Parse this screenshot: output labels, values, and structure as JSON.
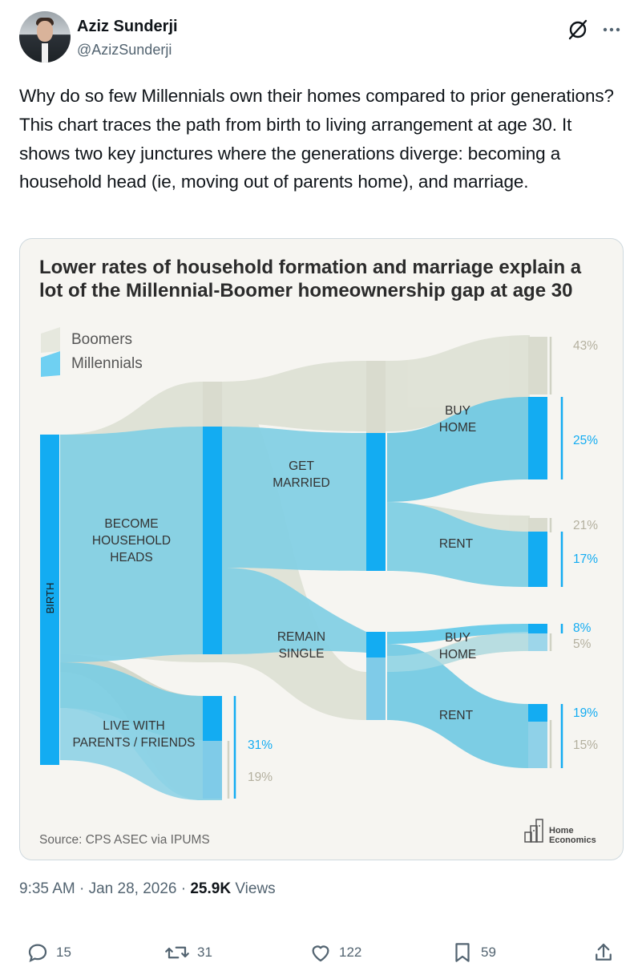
{
  "author": {
    "name": "Aziz Sunderji",
    "handle": "@AzizSunderji"
  },
  "header_icons": {
    "grok": "grok-icon",
    "more": "more-dots-icon"
  },
  "tweet_text": "Why do so few Millennials own their homes compared to prior generations? This chart traces the path from birth to living arrangement at age 30. It shows two key junctures where the generations diverge: becoming a household head (ie, moving out of parents home), and marriage.",
  "chart": {
    "title_line1": "Lower rates of household formation and marriage explain a",
    "title_line2": "lot of the Millennial-Boomer homeownership gap at age 30",
    "legend": [
      "Boomers",
      "Millennials"
    ],
    "nodes": {
      "birth": "BIRTH",
      "household_1": "BECOME",
      "household_2": "HOUSEHOLD",
      "household_3": "HEADS",
      "parents_1": "LIVE WITH",
      "parents_2": "PARENTS / FRIENDS",
      "married_1": "GET",
      "married_2": "MARRIED",
      "single_1": "REMAIN",
      "single_2": "SINGLE",
      "buy_1": "BUY",
      "buy_2": "HOME",
      "rent": "RENT",
      "sbuy_1": "BUY",
      "sbuy_2": "HOME",
      "srent": "RENT"
    },
    "source": "Source: CPS ASEC via IPUMS",
    "logo_1": "Home",
    "logo_2": "Economics",
    "colors": {
      "millennials": "#13acf2",
      "boomers": "#d5d8cb",
      "label_boomers": "#b4b09f",
      "label_millennials": "#13acf2"
    }
  },
  "chart_data": {
    "type": "sankey",
    "series": [
      "Boomers",
      "Millennials"
    ],
    "outcomes": [
      {
        "path": "Household heads → Married → Buy home",
        "boomers": "43%",
        "millennials": "25%"
      },
      {
        "path": "Household heads → Married → Rent",
        "boomers": "21%",
        "millennials": "17%"
      },
      {
        "path": "Household heads → Single → Buy home",
        "boomers": "5%",
        "millennials": "8%"
      },
      {
        "path": "Household heads → Single → Rent",
        "boomers": "15%",
        "millennials": "19%"
      },
      {
        "path": "Live with parents / friends",
        "boomers": "19%",
        "millennials": "31%"
      }
    ]
  },
  "meta": {
    "time": "9:35 AM · Jan 28, 2026 · ",
    "views_count": "25.9K",
    "views_label": " Views"
  },
  "actions": {
    "replies": "15",
    "reposts": "31",
    "likes": "122",
    "bookmarks": "59"
  }
}
